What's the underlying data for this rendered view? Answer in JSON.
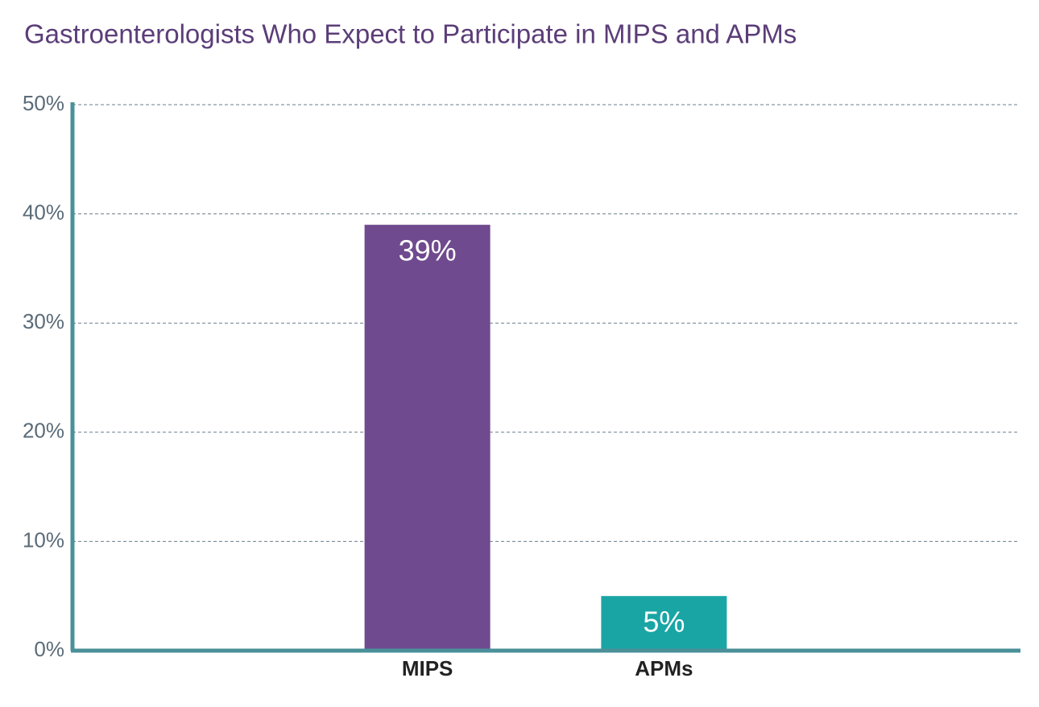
{
  "chart_data": {
    "type": "bar",
    "title": "Gastroenterologists Who Expect to Participate in MIPS and APMs",
    "categories": [
      "MIPS",
      "APMs"
    ],
    "values": [
      39,
      5
    ],
    "value_labels": [
      "39%",
      "5%"
    ],
    "colors": [
      "#6f4a8e",
      "#1aa5a5"
    ],
    "ylim": [
      0,
      50
    ],
    "yticks": [
      {
        "value": 0,
        "label": "0%"
      },
      {
        "value": 10,
        "label": "10%"
      },
      {
        "value": 20,
        "label": "20%"
      },
      {
        "value": 30,
        "label": "30%"
      },
      {
        "value": 40,
        "label": "40%"
      },
      {
        "value": 50,
        "label": "50%"
      }
    ],
    "grid": true
  }
}
